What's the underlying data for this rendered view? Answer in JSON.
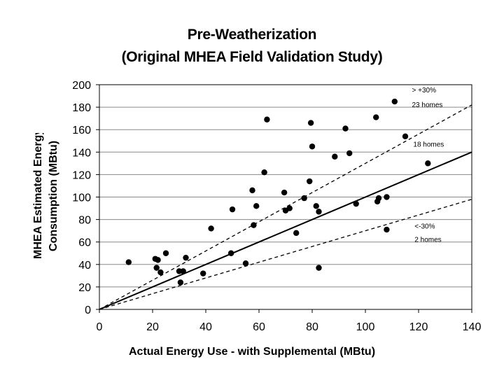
{
  "chart_data": {
    "type": "scatter",
    "title": "Pre-Weatherization",
    "subtitle": "(Original MHEA Field Validation Study)",
    "xlabel": "Actual Energy Use - with Supplemental (MBtu)",
    "ylabel_line1": "MHEA Estimated Energy",
    "ylabel_line2": "Consumption (MBtu)",
    "xlim": [
      0,
      140
    ],
    "ylim": [
      0,
      200
    ],
    "xticks": [
      0,
      20,
      40,
      60,
      80,
      100,
      120,
      140
    ],
    "yticks": [
      0,
      20,
      40,
      60,
      80,
      100,
      120,
      140,
      160,
      180,
      200
    ],
    "grid": "horizontal",
    "points": [
      [
        11,
        42
      ],
      [
        21,
        45
      ],
      [
        21.5,
        37
      ],
      [
        22,
        44
      ],
      [
        23,
        33
      ],
      [
        25,
        50
      ],
      [
        30,
        34
      ],
      [
        30.5,
        24
      ],
      [
        31.5,
        34
      ],
      [
        32.5,
        46
      ],
      [
        39,
        32
      ],
      [
        42,
        72
      ],
      [
        49.5,
        50
      ],
      [
        50,
        89
      ],
      [
        55,
        41
      ],
      [
        57.5,
        106
      ],
      [
        58,
        75
      ],
      [
        59,
        92
      ],
      [
        62,
        122
      ],
      [
        63,
        169
      ],
      [
        69.5,
        104
      ],
      [
        70,
        88
      ],
      [
        71.5,
        90
      ],
      [
        74,
        68
      ],
      [
        77,
        99
      ],
      [
        79,
        114
      ],
      [
        79.5,
        166
      ],
      [
        80,
        145
      ],
      [
        81.5,
        92
      ],
      [
        82.5,
        87
      ],
      [
        82.5,
        37
      ],
      [
        88.5,
        136
      ],
      [
        92.5,
        161
      ],
      [
        94,
        139
      ],
      [
        96.5,
        94
      ],
      [
        104,
        171
      ],
      [
        104.5,
        96
      ],
      [
        105,
        99
      ],
      [
        108,
        71
      ],
      [
        108,
        100
      ],
      [
        111,
        185
      ],
      [
        115,
        154
      ],
      [
        123.5,
        130
      ]
    ],
    "reference_lines": [
      {
        "name": "1:1 line",
        "slope": 1.0,
        "style": "solid"
      },
      {
        "name": "+30% line",
        "slope": 1.3,
        "style": "dashed"
      },
      {
        "name": "-30% line",
        "slope": 0.7,
        "style": "dashed"
      }
    ],
    "annotations": [
      {
        "text": "> +30%",
        "x": 117.5,
        "y": 193
      },
      {
        "text": "23 homes",
        "x": 117.5,
        "y": 180
      },
      {
        "text": "18 homes",
        "x": 118,
        "y": 145
      },
      {
        "text": "<-30%",
        "x": 118.5,
        "y": 72
      },
      {
        "text": "2 homes",
        "x": 118.5,
        "y": 60
      }
    ]
  }
}
